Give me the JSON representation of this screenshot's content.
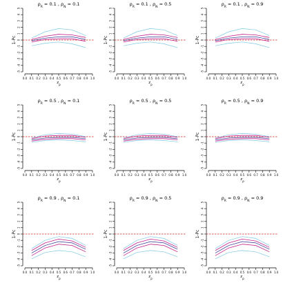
{
  "chart_data": {
    "type": "line",
    "layout": "3x3 grid of panels",
    "xlabel": "zρ",
    "ylabel": "1-Pc",
    "xticks": [
      "0.0",
      "0.1",
      "0.2",
      "0.3",
      "0.4",
      "0.5",
      "0.6",
      "0.7",
      "0.8",
      "0.9",
      "1.0"
    ],
    "yticks": [
      "-5",
      "-4",
      "-3",
      "-2",
      "-1",
      "0",
      "1",
      "2",
      "3",
      "4",
      "5"
    ],
    "xlim": [
      0,
      1
    ],
    "ylim": [
      -5,
      5
    ],
    "reference_line": 0,
    "colors": {
      "reference": "#cc2020",
      "outer_band": "#7ec8e3",
      "inner_band": "#c0208a",
      "mid_line": "#303090",
      "axis": "#000000"
    },
    "panels": [
      {
        "title": "ρR = 0.1 , ρN = 0.1",
        "x": [
          0.1,
          0.3,
          0.5,
          0.7,
          0.9
        ],
        "outer_upper": [
          0.3,
          1.3,
          1.8,
          1.6,
          0.7
        ],
        "outer_lower": [
          -0.9,
          -0.5,
          -0.3,
          -0.6,
          -1.2
        ],
        "inner_upper": [
          0.1,
          0.6,
          0.9,
          0.8,
          0.4
        ],
        "inner_lower": [
          -0.3,
          0.1,
          0.2,
          0.2,
          -0.2
        ],
        "mid": [
          -0.1,
          0.3,
          0.5,
          0.5,
          0.1
        ]
      },
      {
        "title": "ρR = 0.1 , ρN = 0.5",
        "x": [
          0.1,
          0.3,
          0.5,
          0.7,
          0.9
        ],
        "outer_upper": [
          0.3,
          1.3,
          1.8,
          1.6,
          0.7
        ],
        "outer_lower": [
          -0.9,
          -0.5,
          -0.3,
          -0.6,
          -1.2
        ],
        "inner_upper": [
          0.1,
          0.6,
          0.9,
          0.8,
          0.4
        ],
        "inner_lower": [
          -0.3,
          0.1,
          0.2,
          0.2,
          -0.2
        ],
        "mid": [
          -0.1,
          0.3,
          0.5,
          0.5,
          0.1
        ]
      },
      {
        "title": "ρR = 0.1 , ρN = 0.9",
        "x": [
          0.1,
          0.3,
          0.5,
          0.7,
          0.9
        ],
        "outer_upper": [
          0.3,
          1.3,
          1.8,
          1.6,
          0.7
        ],
        "outer_lower": [
          -0.9,
          -0.5,
          -0.3,
          -0.6,
          -1.2
        ],
        "inner_upper": [
          0.1,
          0.6,
          0.9,
          0.8,
          0.4
        ],
        "inner_lower": [
          -0.3,
          0.1,
          0.2,
          0.2,
          -0.2
        ],
        "mid": [
          -0.1,
          0.3,
          0.5,
          0.5,
          0.1
        ]
      },
      {
        "title": "ρR = 0.5 , ρN = 0.1",
        "x": [
          0.1,
          0.3,
          0.5,
          0.7,
          0.9
        ],
        "outer_upper": [
          -0.2,
          0.3,
          0.5,
          0.4,
          0.0
        ],
        "outer_lower": [
          -0.9,
          -0.6,
          -0.5,
          -0.6,
          -0.8
        ],
        "inner_upper": [
          -0.3,
          0.1,
          0.2,
          0.2,
          -0.1
        ],
        "inner_lower": [
          -0.7,
          -0.4,
          -0.3,
          -0.3,
          -0.5
        ],
        "mid": [
          -0.5,
          -0.2,
          -0.1,
          -0.1,
          -0.3
        ]
      },
      {
        "title": "ρR = 0.5 , ρN = 0.5",
        "x": [
          0.1,
          0.3,
          0.5,
          0.7,
          0.9
        ],
        "outer_upper": [
          -0.2,
          0.3,
          0.5,
          0.4,
          0.0
        ],
        "outer_lower": [
          -0.9,
          -0.6,
          -0.5,
          -0.6,
          -0.8
        ],
        "inner_upper": [
          -0.3,
          0.1,
          0.2,
          0.2,
          -0.1
        ],
        "inner_lower": [
          -0.7,
          -0.4,
          -0.3,
          -0.3,
          -0.5
        ],
        "mid": [
          -0.5,
          -0.2,
          -0.1,
          -0.1,
          -0.3
        ]
      },
      {
        "title": "ρR = 0.5 , ρN = 0.9",
        "x": [
          0.1,
          0.3,
          0.5,
          0.7,
          0.9
        ],
        "outer_upper": [
          -0.2,
          0.3,
          0.5,
          0.4,
          0.0
        ],
        "outer_lower": [
          -0.9,
          -0.6,
          -0.5,
          -0.6,
          -0.8
        ],
        "inner_upper": [
          -0.3,
          0.1,
          0.2,
          0.2,
          -0.1
        ],
        "inner_lower": [
          -0.7,
          -0.4,
          -0.3,
          -0.3,
          -0.5
        ],
        "mid": [
          -0.5,
          -0.2,
          -0.1,
          -0.1,
          -0.3
        ]
      },
      {
        "title": "ρR = 0.9 , ρN = 0.1",
        "x": [
          0.1,
          0.3,
          0.5,
          0.7,
          0.9
        ],
        "outer_upper": [
          -2.3,
          -1.0,
          -0.4,
          -0.7,
          -1.8
        ],
        "outer_lower": [
          -3.9,
          -2.9,
          -2.6,
          -2.8,
          -3.6
        ],
        "inner_upper": [
          -2.6,
          -1.4,
          -0.8,
          -1.1,
          -2.1
        ],
        "inner_lower": [
          -3.4,
          -2.2,
          -1.6,
          -1.8,
          -2.8
        ],
        "mid": [
          -3.0,
          -1.8,
          -1.2,
          -1.4,
          -2.4
        ]
      },
      {
        "title": "ρR = 0.9 , ρN = 0.5",
        "x": [
          0.1,
          0.3,
          0.5,
          0.7,
          0.9
        ],
        "outer_upper": [
          -2.3,
          -1.0,
          -0.4,
          -0.7,
          -1.8
        ],
        "outer_lower": [
          -3.9,
          -2.9,
          -2.6,
          -2.8,
          -3.6
        ],
        "inner_upper": [
          -2.6,
          -1.4,
          -0.8,
          -1.1,
          -2.1
        ],
        "inner_lower": [
          -3.4,
          -2.2,
          -1.6,
          -1.8,
          -2.8
        ],
        "mid": [
          -3.0,
          -1.8,
          -1.2,
          -1.4,
          -2.4
        ]
      },
      {
        "title": "ρR = 0.9 , ρN = 0.9",
        "x": [
          0.1,
          0.3,
          0.5,
          0.7,
          0.9
        ],
        "outer_upper": [
          -2.3,
          -1.0,
          -0.4,
          -0.7,
          -1.8
        ],
        "outer_lower": [
          -3.9,
          -2.9,
          -2.6,
          -2.8,
          -3.6
        ],
        "inner_upper": [
          -2.6,
          -1.4,
          -0.8,
          -1.1,
          -2.1
        ],
        "inner_lower": [
          -3.4,
          -2.2,
          -1.6,
          -1.8,
          -2.8
        ],
        "mid": [
          -3.0,
          -1.8,
          -1.2,
          -1.4,
          -2.4
        ]
      }
    ]
  }
}
